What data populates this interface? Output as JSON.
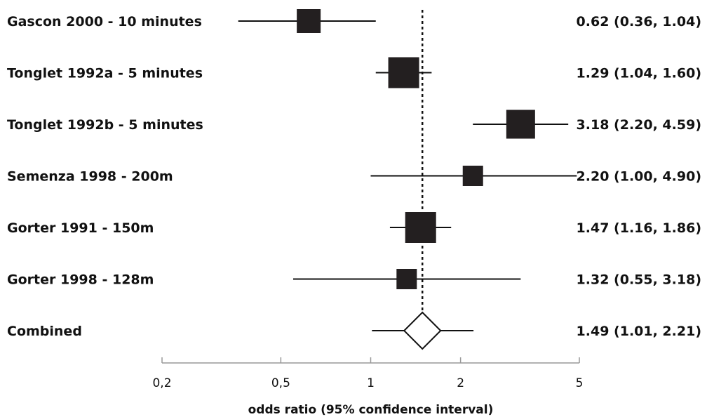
{
  "chart_data": {
    "type": "forest",
    "xscale": "log",
    "xlim": [
      0.2,
      5
    ],
    "xticks": [
      0.2,
      0.5,
      1,
      2,
      5
    ],
    "xtick_labels": [
      "0,2",
      "0,5",
      "1",
      "2",
      "5"
    ],
    "xlabel": "odds ratio (95% confidence interval)",
    "reference_line": 1.49,
    "studies": [
      {
        "label": "Gascon 2000 - 10 minutes",
        "or": 0.62,
        "lo": 0.36,
        "hi": 1.04,
        "weight": 2,
        "text": "0.62 (0.36, 1.04)"
      },
      {
        "label": "Tonglet 1992a - 5 minutes",
        "or": 1.29,
        "lo": 1.04,
        "hi": 1.6,
        "weight": 3,
        "text": "1.29 (1.04, 1.60)"
      },
      {
        "label": "Tonglet 1992b - 5 minutes",
        "or": 3.18,
        "lo": 2.2,
        "hi": 4.59,
        "weight": 2.7,
        "text": "3.18 (2.20, 4.59)"
      },
      {
        "label": "Semenza 1998 - 200m",
        "or": 2.2,
        "lo": 1.0,
        "hi": 4.9,
        "weight": 1.5,
        "text": "2.20 (1.00, 4.90)"
      },
      {
        "label": "Gorter 1991 - 150m",
        "or": 1.47,
        "lo": 1.16,
        "hi": 1.86,
        "weight": 3,
        "text": "1.47 (1.16, 1.86)"
      },
      {
        "label": "Gorter 1998 - 128m",
        "or": 1.32,
        "lo": 0.55,
        "hi": 3.18,
        "weight": 1.5,
        "text": "1.32 (0.55, 3.18)"
      }
    ],
    "combined": {
      "label": "Combined",
      "or": 1.49,
      "lo": 1.01,
      "hi": 2.21,
      "text": "1.49 (1.01, 2.21)"
    }
  }
}
